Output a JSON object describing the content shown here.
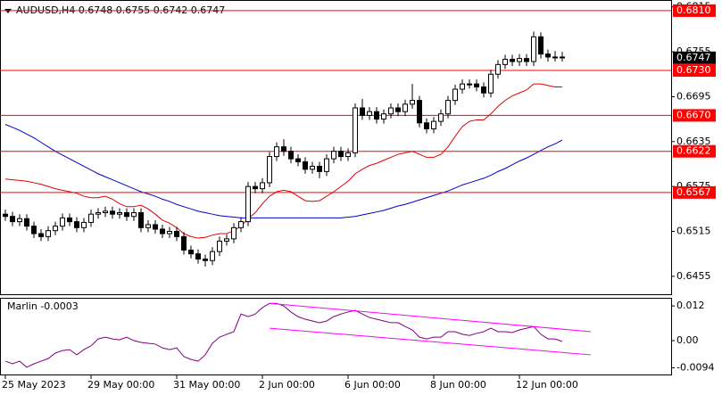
{
  "chart_data": [
    {
      "type": "candlestick",
      "title": "AUDUSD,H4  0.6748 0.6755 0.6742 0.6747",
      "xlim": [
        -0.75,
        93.25
      ],
      "xticks": [
        {
          "value": 0,
          "label": "25 May 2023"
        },
        {
          "value": 12,
          "label": "29 May 00:00"
        },
        {
          "value": 24,
          "label": "31 May 00:00"
        },
        {
          "value": 36,
          "label": "2 Jun 00:00"
        },
        {
          "value": 48,
          "label": "6 Jun 00:00"
        },
        {
          "value": 60,
          "label": "8 Jun 00:00"
        },
        {
          "value": 72,
          "label": "12 Jun 00:00"
        }
      ],
      "ylim": [
        0.6431,
        0.6823
      ],
      "yticks": [
        0.6815,
        0.6755,
        0.6695,
        0.6635,
        0.6575,
        0.6515,
        0.6455
      ],
      "up_color": "#ffffff",
      "down_color": "#000000",
      "edge_color": "#000000",
      "open": [
        0.6538,
        0.6535,
        0.6528,
        0.6532,
        0.6522,
        0.6512,
        0.6508,
        0.6516,
        0.6522,
        0.6533,
        0.6528,
        0.652,
        0.6527,
        0.6538,
        0.654,
        0.6542,
        0.6538,
        0.654,
        0.6535,
        0.654,
        0.652,
        0.6524,
        0.6518,
        0.6512,
        0.6515,
        0.6508,
        0.649,
        0.6485,
        0.6478,
        0.6476,
        0.6488,
        0.6502,
        0.6505,
        0.652,
        0.6528,
        0.6575,
        0.6572,
        0.658,
        0.6615,
        0.6628,
        0.6622,
        0.6612,
        0.6608,
        0.6598,
        0.6602,
        0.6595,
        0.6612,
        0.6622,
        0.6615,
        0.662,
        0.668,
        0.667,
        0.6675,
        0.6665,
        0.6672,
        0.668,
        0.6675,
        0.6685,
        0.669,
        0.666,
        0.6652,
        0.6662,
        0.6672,
        0.669,
        0.6705,
        0.6712,
        0.6712,
        0.6708,
        0.67,
        0.6725,
        0.6738,
        0.6745,
        0.6742,
        0.6746,
        0.6742,
        0.6775,
        0.6752,
        0.6748,
        0.6748
      ],
      "high": [
        0.6544,
        0.6541,
        0.6538,
        0.6538,
        0.6528,
        0.6518,
        0.6522,
        0.6528,
        0.6539,
        0.6539,
        0.6534,
        0.6533,
        0.6544,
        0.6546,
        0.6548,
        0.6548,
        0.6546,
        0.6546,
        0.6546,
        0.6546,
        0.653,
        0.653,
        0.6524,
        0.6521,
        0.6521,
        0.6514,
        0.6496,
        0.6491,
        0.6484,
        0.6494,
        0.6508,
        0.6511,
        0.6526,
        0.6534,
        0.6581,
        0.6581,
        0.6586,
        0.6621,
        0.6634,
        0.6638,
        0.6628,
        0.6618,
        0.6614,
        0.6608,
        0.6608,
        0.6618,
        0.6628,
        0.6628,
        0.6626,
        0.6686,
        0.6692,
        0.6681,
        0.6681,
        0.6678,
        0.6686,
        0.6686,
        0.6691,
        0.6712,
        0.6696,
        0.6666,
        0.6668,
        0.6678,
        0.6696,
        0.6711,
        0.6718,
        0.6718,
        0.6718,
        0.6714,
        0.6731,
        0.6744,
        0.6751,
        0.6751,
        0.6752,
        0.6752,
        0.6782,
        0.6781,
        0.6758,
        0.6756,
        0.6755
      ],
      "low": [
        0.6529,
        0.6522,
        0.6522,
        0.6516,
        0.6506,
        0.6502,
        0.6502,
        0.651,
        0.6516,
        0.6522,
        0.6514,
        0.6514,
        0.6521,
        0.6532,
        0.6534,
        0.6532,
        0.6532,
        0.6529,
        0.6529,
        0.6514,
        0.6514,
        0.6512,
        0.6506,
        0.6506,
        0.6502,
        0.6484,
        0.6479,
        0.6472,
        0.6468,
        0.647,
        0.6482,
        0.6496,
        0.6499,
        0.6514,
        0.6522,
        0.6566,
        0.6566,
        0.6574,
        0.6609,
        0.6616,
        0.6606,
        0.6602,
        0.6592,
        0.6592,
        0.6586,
        0.6589,
        0.6606,
        0.6609,
        0.6609,
        0.6614,
        0.6664,
        0.6664,
        0.6659,
        0.6659,
        0.6666,
        0.6669,
        0.6669,
        0.6679,
        0.6654,
        0.6646,
        0.6646,
        0.6656,
        0.6666,
        0.6684,
        0.6699,
        0.6706,
        0.6702,
        0.6694,
        0.6694,
        0.6719,
        0.6732,
        0.6736,
        0.6736,
        0.6736,
        0.6736,
        0.6746,
        0.6742,
        0.6742,
        0.6742
      ],
      "close": [
        0.6535,
        0.6528,
        0.6532,
        0.6522,
        0.6512,
        0.6508,
        0.6516,
        0.6522,
        0.6533,
        0.6528,
        0.652,
        0.6527,
        0.6538,
        0.654,
        0.6542,
        0.6538,
        0.654,
        0.6535,
        0.654,
        0.652,
        0.6524,
        0.6518,
        0.6512,
        0.6515,
        0.6508,
        0.649,
        0.6485,
        0.6478,
        0.6476,
        0.6488,
        0.6502,
        0.6505,
        0.652,
        0.6528,
        0.6575,
        0.6572,
        0.658,
        0.6615,
        0.6628,
        0.6622,
        0.6612,
        0.6608,
        0.6598,
        0.6602,
        0.6595,
        0.6612,
        0.6622,
        0.6615,
        0.662,
        0.668,
        0.667,
        0.6675,
        0.6665,
        0.6672,
        0.668,
        0.6675,
        0.6685,
        0.669,
        0.666,
        0.6652,
        0.6662,
        0.6672,
        0.669,
        0.6705,
        0.6712,
        0.6712,
        0.6708,
        0.67,
        0.6725,
        0.6738,
        0.6745,
        0.6742,
        0.6746,
        0.6742,
        0.6775,
        0.6752,
        0.6748,
        0.6748,
        0.6747
      ],
      "lines": [
        {
          "color": "#e00000",
          "values": [
            0.6585,
            0.6584,
            0.6583,
            0.6582,
            0.658,
            0.6578,
            0.6575,
            0.6572,
            0.657,
            0.6568,
            0.6566,
            0.6562,
            0.656,
            0.656,
            0.6562,
            0.6558,
            0.6552,
            0.6548,
            0.6548,
            0.655,
            0.6545,
            0.6538,
            0.653,
            0.6526,
            0.652,
            0.6512,
            0.6508,
            0.6506,
            0.6507,
            0.651,
            0.6512,
            0.6512,
            0.6516,
            0.6522,
            0.6532,
            0.654,
            0.6552,
            0.6562,
            0.6568,
            0.657,
            0.6568,
            0.6562,
            0.6556,
            0.6555,
            0.6556,
            0.6562,
            0.6568,
            0.6575,
            0.6582,
            0.6592,
            0.6598,
            0.6603,
            0.6606,
            0.661,
            0.6614,
            0.6618,
            0.662,
            0.6622,
            0.6618,
            0.6614,
            0.6614,
            0.6618,
            0.6628,
            0.6642,
            0.6655,
            0.6662,
            0.6664,
            0.6664,
            0.6672,
            0.6682,
            0.669,
            0.6696,
            0.67,
            0.6704,
            0.6712,
            0.6712,
            0.671,
            0.6708,
            0.6708
          ]
        },
        {
          "color": "#0000c8",
          "values": [
            0.6658,
            0.6654,
            0.665,
            0.6645,
            0.664,
            0.6634,
            0.6628,
            0.6622,
            0.6617,
            0.6612,
            0.6607,
            0.6602,
            0.6597,
            0.6592,
            0.6588,
            0.6584,
            0.658,
            0.6576,
            0.6572,
            0.6568,
            0.6565,
            0.6562,
            0.6558,
            0.6555,
            0.6551,
            0.6548,
            0.6545,
            0.6542,
            0.654,
            0.6538,
            0.6536,
            0.6535,
            0.6534,
            0.6533,
            0.6533,
            0.6533,
            0.6533,
            0.6533,
            0.6533,
            0.6533,
            0.6533,
            0.6533,
            0.6533,
            0.6533,
            0.6533,
            0.6533,
            0.6533,
            0.6533,
            0.6534,
            0.6535,
            0.6537,
            0.6539,
            0.6541,
            0.6543,
            0.6546,
            0.6549,
            0.6551,
            0.6554,
            0.6557,
            0.656,
            0.6563,
            0.6566,
            0.6569,
            0.6573,
            0.6577,
            0.658,
            0.6583,
            0.6586,
            0.659,
            0.6595,
            0.6599,
            0.6604,
            0.6609,
            0.6613,
            0.6618,
            0.6623,
            0.6628,
            0.6632,
            0.6637
          ]
        }
      ],
      "level_color": "#ff0000",
      "levels": [
        {
          "value": 0.681,
          "label": "0.6810"
        },
        {
          "value": 0.673,
          "label": "0.6730"
        },
        {
          "value": 0.667,
          "label": "0.6670"
        },
        {
          "value": 0.6622,
          "label": "0.6622"
        },
        {
          "value": 0.6567,
          "label": "0.6567"
        }
      ],
      "last_price": 0.6747
    },
    {
      "type": "line",
      "title": "Marlin -0.0003",
      "xlim": [
        -0.75,
        93.25
      ],
      "ylim": [
        -0.0117,
        0.0145
      ],
      "yticks": [
        0.012,
        {
          "value": 0,
          "label": "0.00"
        },
        -0.0094
      ],
      "color": "#800080",
      "values": [
        -0.0071,
        -0.008,
        -0.0071,
        -0.0092,
        -0.008,
        -0.0071,
        -0.0062,
        -0.0043,
        -0.0034,
        -0.0031,
        -0.0049,
        -0.0031,
        -0.0018,
        0.0006,
        0.0012,
        0.0006,
        0.0003,
        0.0012,
        0,
        -0.0006,
        -0.0009,
        -0.0012,
        -0.0025,
        -0.0031,
        -0.0025,
        -0.0055,
        -0.0065,
        -0.0071,
        -0.0049,
        -0.0009,
        0.0012,
        0.0022,
        0.0031,
        0.0092,
        0.0083,
        0.0092,
        0.0114,
        0.0129,
        0.0129,
        0.012,
        0.0099,
        0.0083,
        0.0074,
        0.0068,
        0.0062,
        0.0068,
        0.0083,
        0.0092,
        0.0099,
        0.0105,
        0.0092,
        0.008,
        0.0074,
        0.0068,
        0.0062,
        0.0062,
        0.0049,
        0.0037,
        0.0012,
        0.0006,
        0.0012,
        0.0012,
        0.0031,
        0.0031,
        0.0022,
        0.0018,
        0.0025,
        0.0031,
        0.0043,
        0.0031,
        0.0031,
        0.0028,
        0.0037,
        0.0043,
        0.0049,
        0.0022,
        0.0006,
        0.0006,
        -0.0003
      ],
      "trendline_color": "#ff00ff",
      "trendlines": [
        {
          "x": [
            37,
            82
          ],
          "values": [
            0.0129,
            0.0031
          ]
        },
        {
          "x": [
            37,
            82
          ],
          "values": [
            0.0043,
            -0.0049
          ]
        }
      ]
    }
  ]
}
